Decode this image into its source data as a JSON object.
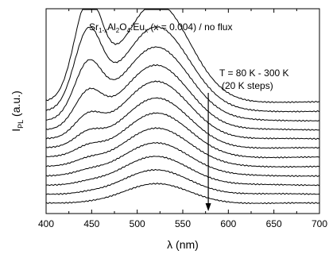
{
  "chart_data": {
    "type": "line",
    "title": {
      "main": "Sr",
      "sub1": "1-x",
      "part2": "Al",
      "sub2": "2",
      "part3": "O",
      "sub3": "4",
      "part4": ":Eu",
      "sub4": "x",
      "part5": " (x = 0.004) / no flux"
    },
    "xlabel": "λ (nm)",
    "ylabel": {
      "main": "I",
      "sub": "PL",
      "rest": " (a.u.)"
    },
    "xlim": [
      400,
      700
    ],
    "x_ticks": [
      400,
      450,
      500,
      550,
      600,
      650,
      700
    ],
    "x_tick_labels": [
      "400",
      "450",
      "500",
      "550",
      "600",
      "650",
      "700"
    ],
    "y_ticks_shown": false,
    "grid": false,
    "annotation": {
      "line1": "T = 80 K - 300 K",
      "line2": "(20 K steps)",
      "arrow_x": 578,
      "arrow_direction": "down"
    },
    "series": [
      {
        "offset": 11.0,
        "blue_peak": 10.2,
        "green_peak": 10.8,
        "baseline": 0.25
      },
      {
        "offset": 10.0,
        "blue_peak": 8.0,
        "green_peak": 9.2,
        "baseline": 0.25
      },
      {
        "offset": 9.0,
        "blue_peak": 5.6,
        "green_peak": 8.0,
        "baseline": 0.25
      },
      {
        "offset": 8.0,
        "blue_peak": 3.6,
        "green_peak": 7.0,
        "baseline": 0.25
      },
      {
        "offset": 7.0,
        "blue_peak": 2.2,
        "green_peak": 6.2,
        "baseline": 0.25
      },
      {
        "offset": 6.0,
        "blue_peak": 1.4,
        "green_peak": 5.4,
        "baseline": 0.25
      },
      {
        "offset": 5.0,
        "blue_peak": 0.9,
        "green_peak": 4.8,
        "baseline": 0.25
      },
      {
        "offset": 4.0,
        "blue_peak": 0.55,
        "green_peak": 4.2,
        "baseline": 0.25
      },
      {
        "offset": 3.0,
        "blue_peak": 0.35,
        "green_peak": 3.6,
        "baseline": 0.25
      },
      {
        "offset": 2.0,
        "blue_peak": 0.2,
        "green_peak": 3.1,
        "baseline": 0.25
      },
      {
        "offset": 1.0,
        "blue_peak": 0.12,
        "green_peak": 2.6,
        "baseline": 0.25
      },
      {
        "offset": 0.0,
        "blue_peak": 0.05,
        "green_peak": 2.1,
        "baseline": 0.25
      }
    ],
    "peaks": {
      "blue_center": 446,
      "blue_width": 15,
      "green_center": 521,
      "green_width": 36
    },
    "colors": {
      "line": "#000000",
      "axes": "#000000"
    }
  }
}
